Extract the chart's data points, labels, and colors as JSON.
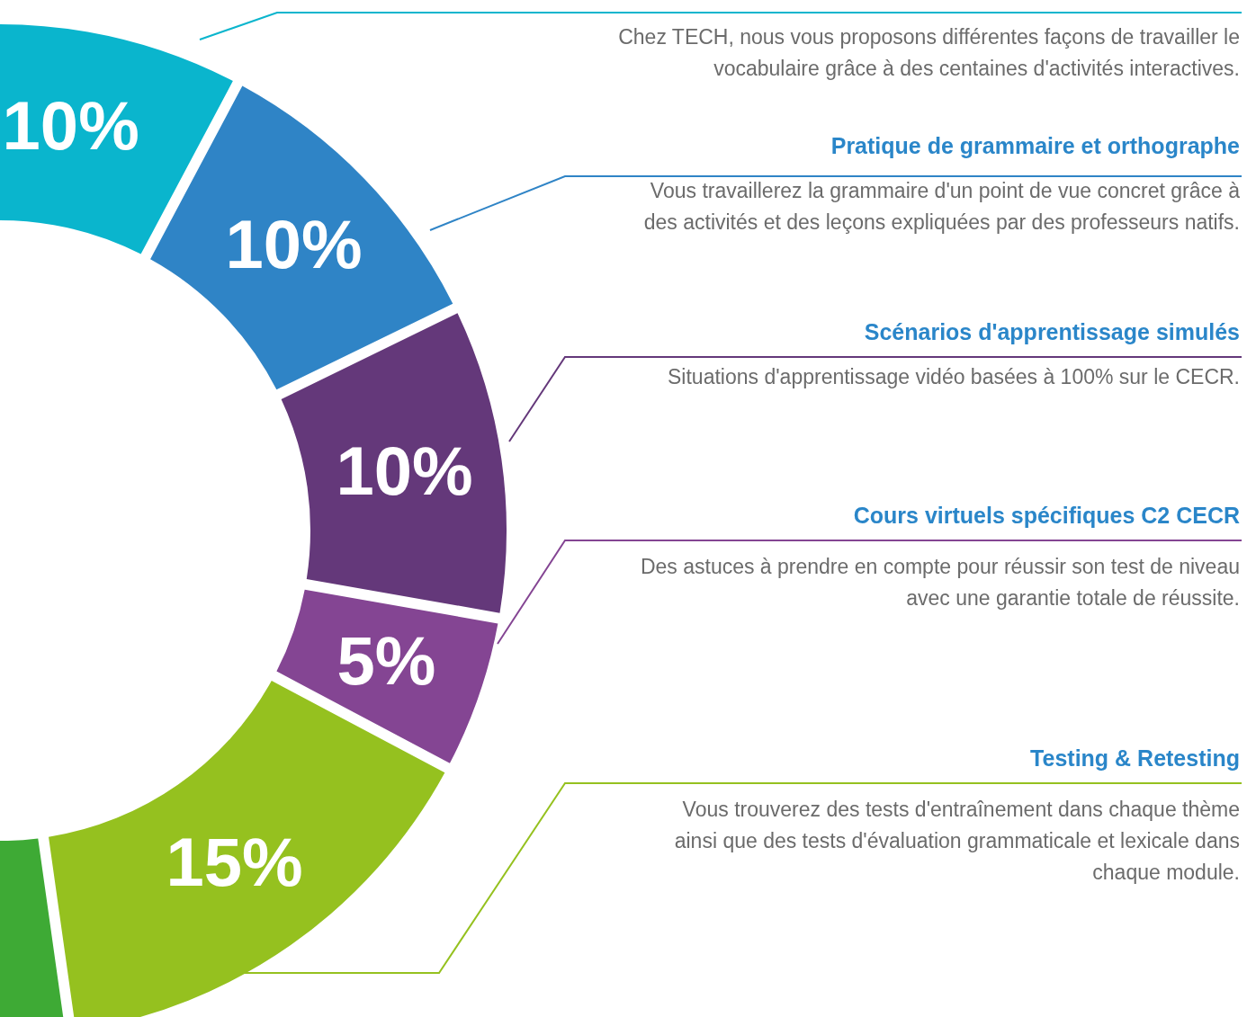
{
  "chart_data": {
    "type": "donut",
    "categories": [
      null,
      "Pratique de grammaire et orthographe",
      "Scénarios d'apprentissage simulés",
      "Cours virtuels spécifiques C2 CECR",
      "Testing & Retesting",
      null
    ],
    "values": [
      10,
      10,
      10,
      5,
      15,
      50
    ],
    "colors": [
      "#0ab5cd",
      "#2f84c6",
      "#64387a",
      "#844593",
      "#95c11f",
      "#3eaa35"
    ],
    "value_labels": [
      "10%",
      "10%",
      "10%",
      "5%",
      "15%",
      null
    ],
    "annotations": [
      "Chez TECH, nous vous proposons différentes façons de travailler le\nvocabulaire grâce à des centaines d'activités interactives.",
      "Vous travaillerez la grammaire d'un point de vue concret grâce à\ndes activités et des leçons expliquées par des professeurs natifs.",
      "Situations d'apprentissage vidéo basées à 100% sur le CECR.",
      "Des astuces à prendre en compte pour réussir son test de niveau\navec une garantie totale de réussite.",
      "Vous trouverez des tests d'entraînement dans chaque thème\nainsi que des tests d'évaluation grammaticale et lexicale dans\nchaque module."
    ]
  }
}
